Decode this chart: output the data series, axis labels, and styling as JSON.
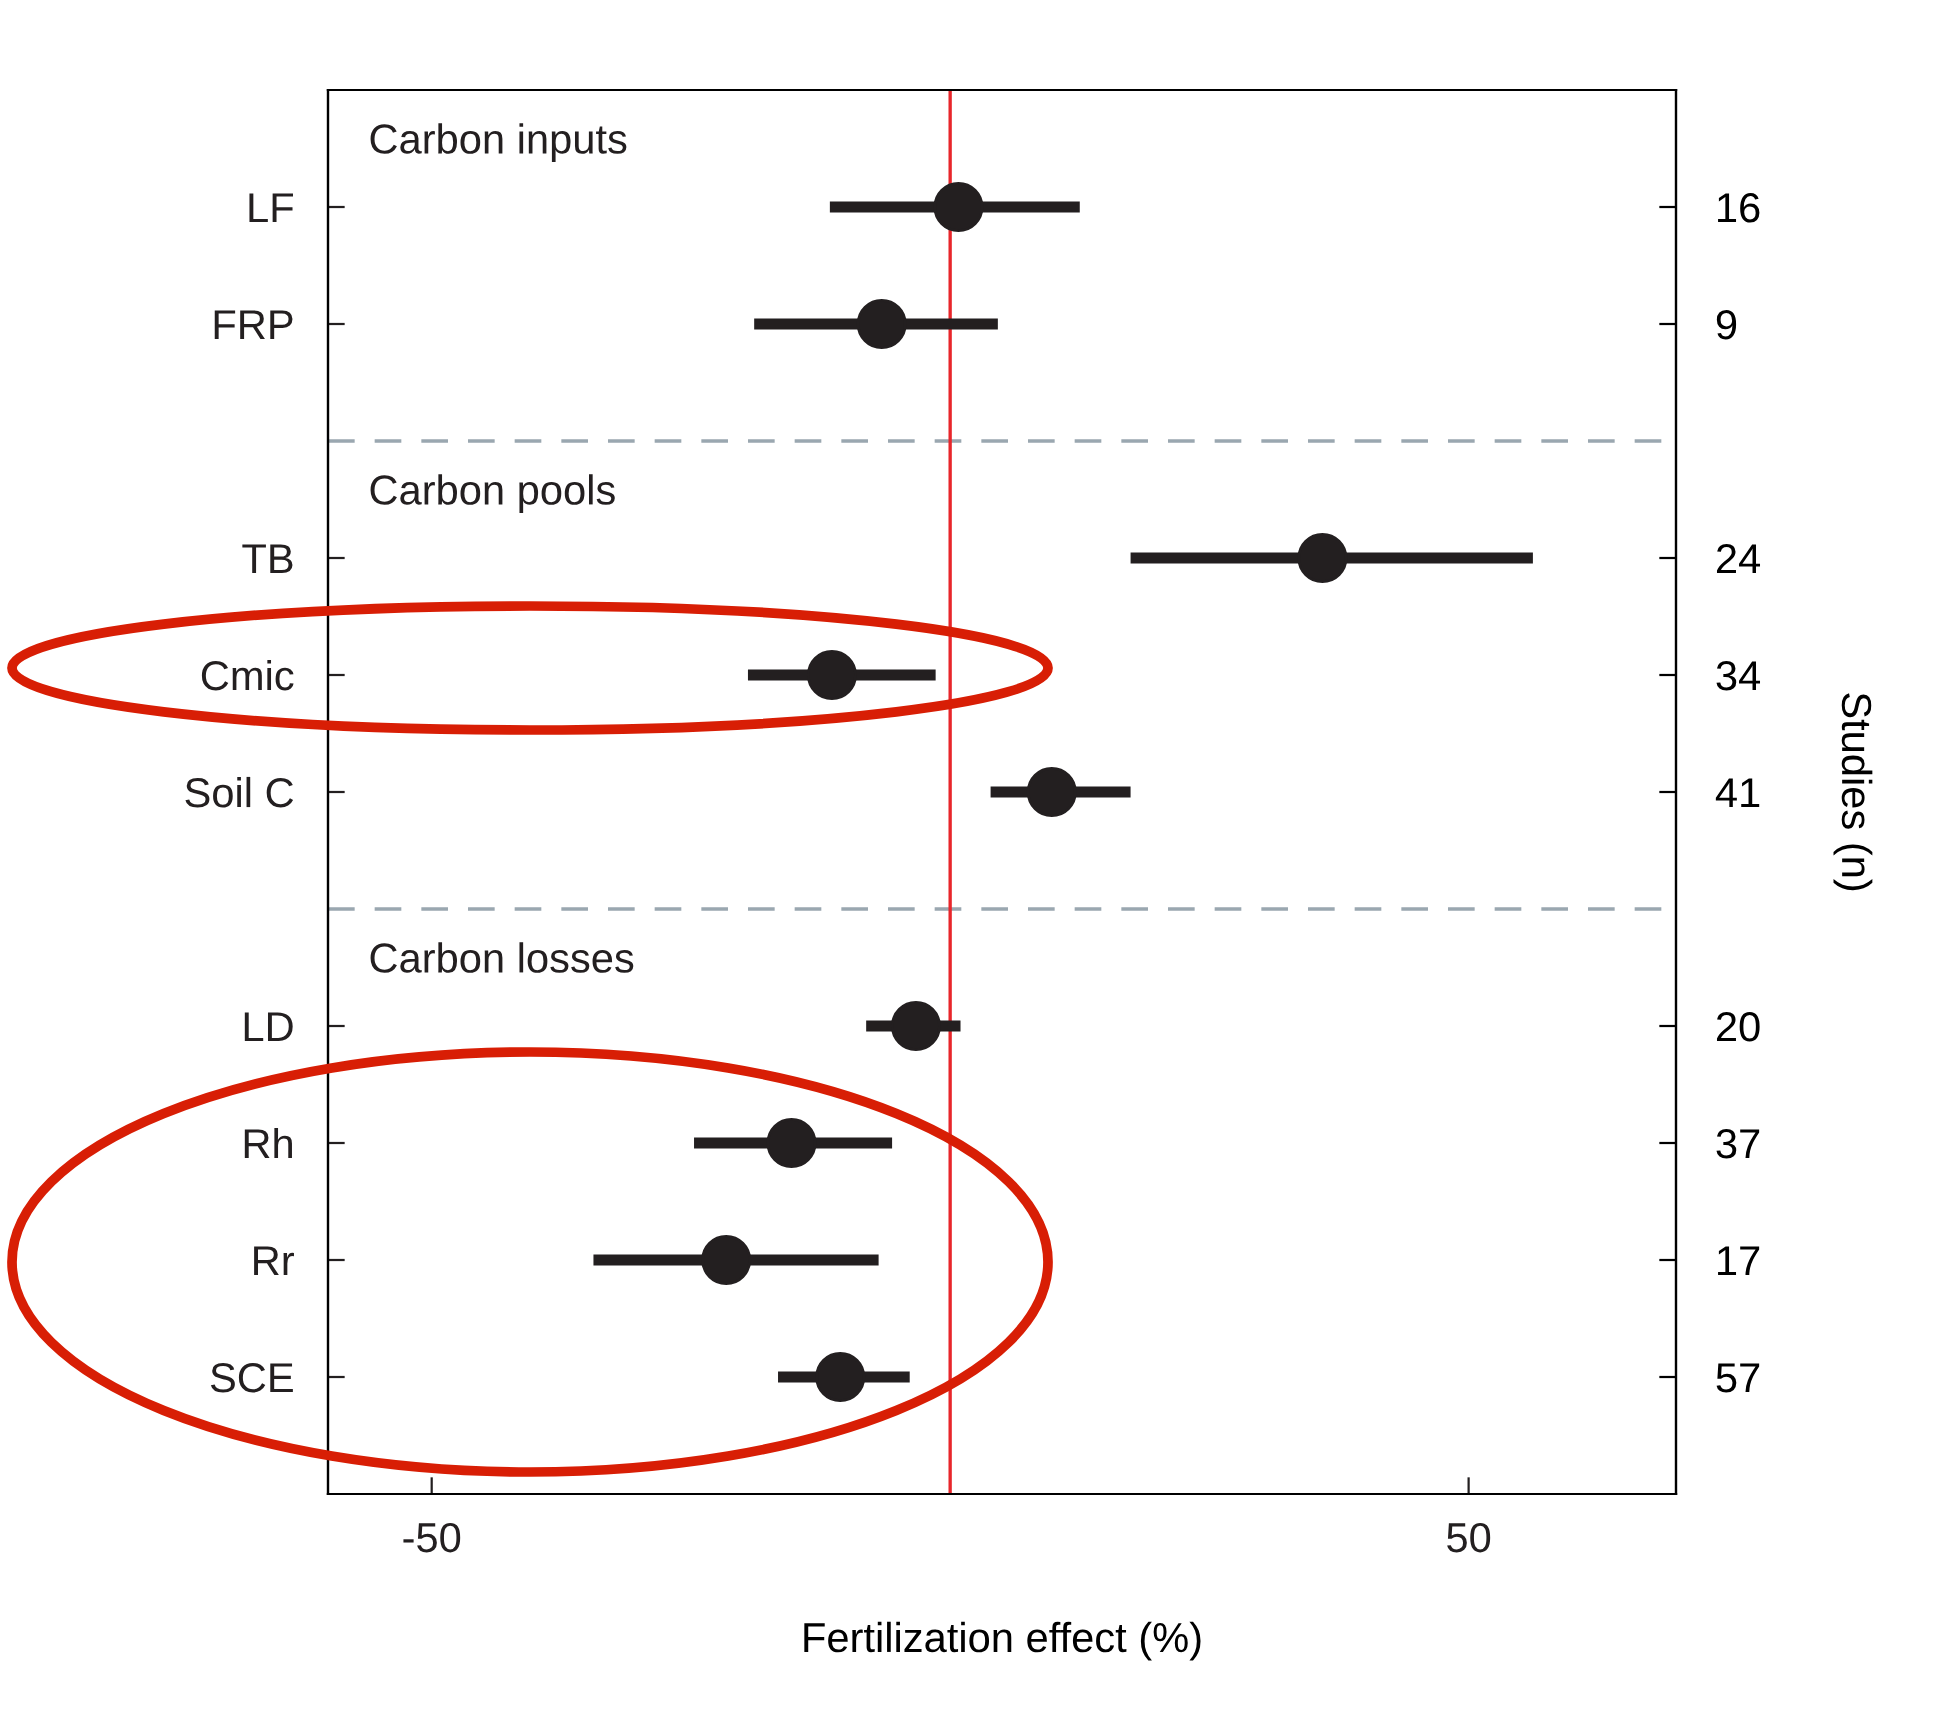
{
  "chart_data": {
    "type": "scatter",
    "orientation": "horizontal",
    "categories": [
      "LF",
      "FRP",
      null,
      "TB",
      "Cmic",
      "Soil C",
      null,
      "LD",
      "Rh",
      "Rr",
      "SCE"
    ],
    "y2_categories": [
      "16",
      "9",
      null,
      "24",
      "34",
      "41",
      null,
      "20",
      "37",
      "17",
      "57"
    ],
    "y2label": "Studies (n)",
    "xlabel": "Fertilization effect (%)",
    "series": [
      {
        "color": "#231f20",
        "values": [
          0.8,
          -6.6,
          null,
          35.9,
          -11.4,
          9.8,
          null,
          -3.3,
          -15.3,
          -21.6,
          -10.6
        ],
        "errors": [
          [
            -11.6,
            12.5
          ],
          [
            -18.9,
            4.6
          ],
          null,
          [
            17.4,
            56.2
          ],
          [
            -19.5,
            -1.4
          ],
          [
            3.9,
            17.4
          ],
          null,
          [
            -8.1,
            1.0
          ],
          [
            -24.7,
            -5.6
          ],
          [
            -34.4,
            -6.9
          ],
          [
            -16.6,
            -3.9
          ]
        ]
      }
    ],
    "xlim": [
      -60,
      70
    ],
    "xticks": [
      -50,
      50
    ],
    "annotations": [
      "Carbon inputs",
      "Carbon pools",
      "Carbon losses"
    ],
    "ref_lines": [
      {
        "axis": "x",
        "value": 0,
        "color": "#e8262b",
        "line_style": "solid"
      }
    ],
    "marker": "circle",
    "grid": false,
    "legend": false
  }
}
